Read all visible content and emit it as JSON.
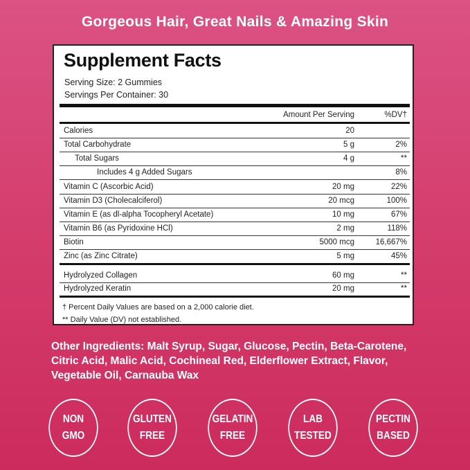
{
  "headline": "Gorgeous Hair, Great Nails & Amazing Skin",
  "panel": {
    "title": "Supplement Facts",
    "serving_size": "Serving Size: 2 Gummies",
    "servings_per_container": "Servings Per Container: 30",
    "col_amount": "Amount Per Serving",
    "col_dv": "%DV†",
    "rows": [
      {
        "name": "Calories",
        "amount": "20",
        "dv": ""
      },
      {
        "name": "Total Carbohydrate",
        "amount": "5 g",
        "dv": "2%"
      },
      {
        "name": "Total Sugars",
        "amount": "4 g",
        "dv": "**"
      },
      {
        "name": "Includes 4 g Added Sugars",
        "amount": "",
        "dv": "8%"
      },
      {
        "name": "Vitamin C (Ascorbic Acid)",
        "amount": "20 mg",
        "dv": "22%"
      },
      {
        "name": "Vitamin D3 (Cholecalciferol)",
        "amount": "20 mcg",
        "dv": "100%"
      },
      {
        "name": "Vitamin E (as dl-alpha Tocopheryl Acetate)",
        "amount": "10 mg",
        "dv": "67%"
      },
      {
        "name": "Vitamin B6 (as Pyridoxine HCl)",
        "amount": "2 mg",
        "dv": "118%"
      },
      {
        "name": "Biotin",
        "amount": "5000 mcg",
        "dv": "16,667%"
      },
      {
        "name": "Zinc (as Zinc Citrate)",
        "amount": "5 mg",
        "dv": "45%"
      },
      {
        "name": "Hydrolyzed Collagen",
        "amount": "60 mg",
        "dv": "**"
      },
      {
        "name": "Hydrolyzed Keratin",
        "amount": "20 mg",
        "dv": "**"
      }
    ],
    "footnote1": "† Percent Daily Values are based on a 2,000 calorie diet.",
    "footnote2": "** Daily Value (DV) not established."
  },
  "other_ingredients": "Other Ingredients: Malt Syrup, Sugar, Glucose, Pectin, Beta-Carotene, Citric Acid, Malic Acid, Cochineal Red, Elderflower Extract, Flavor, Vegetable Oil, Carnauba Wax",
  "badges": [
    {
      "l1": "NON",
      "l2": "GMO"
    },
    {
      "l1": "GLUTEN",
      "l2": "FREE"
    },
    {
      "l1": "GELATIN",
      "l2": "FREE"
    },
    {
      "l1": "LAB",
      "l2": "TESTED"
    },
    {
      "l1": "PECTIN",
      "l2": "BASED"
    }
  ],
  "colors": {
    "background_top": "#db5283",
    "background_bottom": "#cc2b5d",
    "panel": "#ffffff"
  }
}
